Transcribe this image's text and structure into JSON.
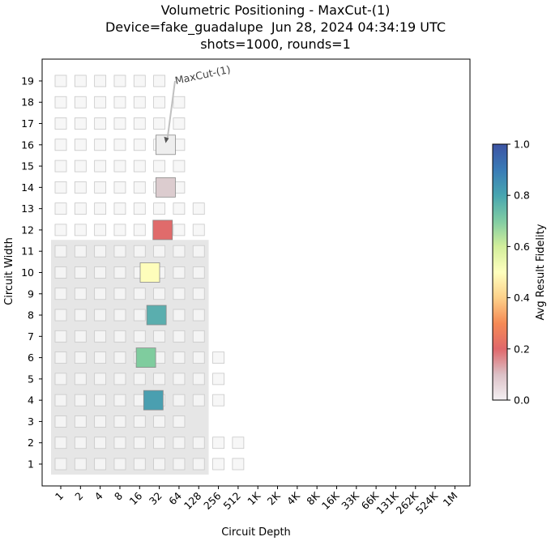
{
  "title_lines": [
    "Volumetric Positioning - MaxCut-(1)",
    "Device=fake_guadalupe  Jun 28, 2024 04:34:19 UTC",
    "shots=1000, rounds=1"
  ],
  "chart_data": {
    "type": "heatmap",
    "title": "Volumetric Positioning - MaxCut-(1)",
    "xlabel": "Circuit Depth",
    "ylabel": "Circuit Width",
    "x_ticks": [
      "1",
      "2",
      "4",
      "8",
      "16",
      "32",
      "64",
      "128",
      "256",
      "512",
      "1K",
      "2K",
      "4K",
      "8K",
      "16K",
      "33K",
      "66K",
      "131K",
      "262K",
      "524K",
      "1M"
    ],
    "y_ticks": [
      "1",
      "2",
      "3",
      "4",
      "5",
      "6",
      "7",
      "8",
      "9",
      "10",
      "11",
      "12",
      "13",
      "14",
      "15",
      "16",
      "17",
      "18",
      "19"
    ],
    "colorbar": {
      "label": "Avg Result Fidelity",
      "min": 0.0,
      "max": 1.0,
      "ticks": [
        "0.0",
        "0.2",
        "0.4",
        "0.6",
        "0.8",
        "1.0"
      ]
    },
    "volume_region": {
      "max_depth_log2": 8,
      "max_width": 11
    },
    "background_cells": [
      [
        1,
        10
      ],
      [
        2,
        10
      ],
      [
        3,
        7
      ],
      [
        4,
        9
      ],
      [
        5,
        9
      ],
      [
        6,
        9
      ],
      [
        7,
        8
      ],
      [
        8,
        8
      ],
      [
        9,
        8
      ],
      [
        10,
        8
      ],
      [
        11,
        8
      ],
      [
        12,
        8
      ],
      [
        13,
        8
      ],
      [
        14,
        7
      ],
      [
        15,
        7
      ],
      [
        16,
        7
      ],
      [
        17,
        7
      ],
      [
        18,
        7
      ],
      [
        19,
        6
      ]
    ],
    "data_points": [
      {
        "width": 4,
        "depth": 26,
        "fidelity": 0.82,
        "color": "#4a9fb0"
      },
      {
        "width": 6,
        "depth": 20,
        "fidelity": 0.7,
        "color": "#7fcc9e"
      },
      {
        "width": 8,
        "depth": 29,
        "fidelity": 0.8,
        "color": "#5aaeae"
      },
      {
        "width": 10,
        "depth": 23,
        "fidelity": 0.5,
        "color": "#fefdbb"
      },
      {
        "width": 12,
        "depth": 36,
        "fidelity": 0.22,
        "color": "#e06b6b"
      },
      {
        "width": 14,
        "depth": 40,
        "fidelity": 0.03,
        "color": "#dccccf"
      },
      {
        "width": 16,
        "depth": 40,
        "fidelity": 0.0,
        "color": "#eeeeee"
      }
    ],
    "annotation": {
      "text": "MaxCut-(1)",
      "target_width": 16,
      "target_depth": 40
    }
  }
}
